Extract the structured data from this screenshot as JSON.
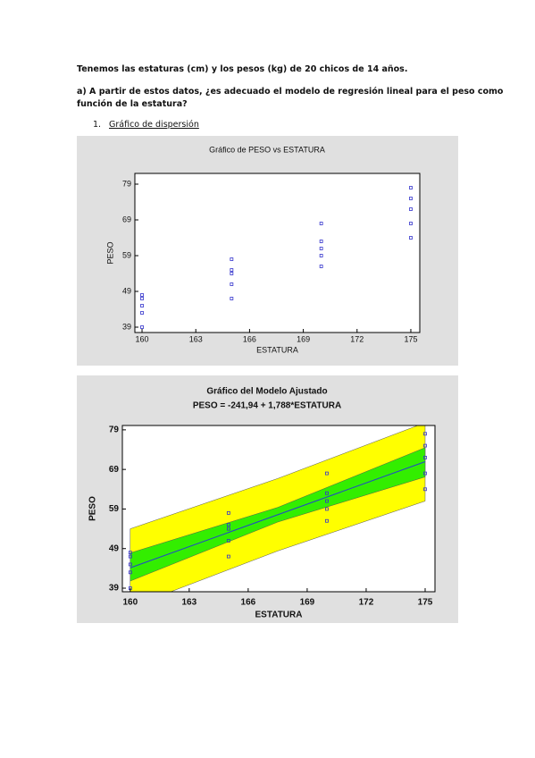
{
  "document": {
    "intro": "Tenemos las estaturas (cm) y los pesos (kg) de 20 chicos de 14 años.",
    "question_lines": [
      "a) A partir de estos datos, ¿es adecuado el modelo de regresión lineal para el peso como",
      "función de la estatura?"
    ],
    "list_number": "1.",
    "list_item": "Gráfico de dispersión"
  },
  "chart_data": [
    {
      "type": "scatter",
      "title": "Gráfico de PESO vs ESTATURA",
      "x_label": "ESTATURA",
      "y_label": "PESO",
      "x": [
        160,
        160,
        160,
        160,
        160,
        165,
        165,
        165,
        165,
        165,
        170,
        170,
        170,
        170,
        170,
        175,
        175,
        175,
        175,
        175
      ],
      "values": [
        48,
        47,
        45,
        43,
        39,
        58,
        55,
        54,
        51,
        47,
        68,
        63,
        61,
        59,
        56,
        78,
        75,
        72,
        68,
        64
      ],
      "color": "#3333cc",
      "xlim": [
        159.6,
        175.5
      ],
      "ylim": [
        37.5,
        82
      ],
      "xticks": [
        160,
        163,
        166,
        169,
        172,
        175
      ],
      "yticks": [
        39,
        49,
        59,
        69,
        79
      ]
    },
    {
      "type": "scatter",
      "title": "Gráfico del Modelo Ajustado",
      "subtitle": "PESO = -241,94 + 1,788*ESTATURA",
      "x_label": "ESTATURA",
      "y_label": "PESO",
      "x": [
        160,
        160,
        160,
        160,
        160,
        165,
        165,
        165,
        165,
        165,
        170,
        170,
        170,
        170,
        170,
        175,
        175,
        175,
        175,
        175
      ],
      "values": [
        48,
        47,
        45,
        43,
        39,
        58,
        55,
        54,
        51,
        47,
        68,
        63,
        61,
        59,
        56,
        78,
        75,
        72,
        68,
        64
      ],
      "color": "#3333cc",
      "fit": {
        "x": [
          160,
          175
        ],
        "values": [
          44.14,
          70.96
        ],
        "color": "#2244cc"
      },
      "prediction_band": {
        "x": [
          160,
          167.5,
          175
        ],
        "lower": [
          34.2,
          48.4,
          61.0
        ],
        "upper": [
          54.0,
          66.7,
          80.8
        ],
        "color": "#ffff00"
      },
      "confidence_band": {
        "x": [
          160,
          167.5,
          175
        ],
        "lower": [
          40.8,
          55.7,
          67.1
        ],
        "upper": [
          47.9,
          59.4,
          74.5
        ],
        "color": "#33ee00"
      },
      "xlim": [
        159.6,
        175.5
      ],
      "ylim": [
        38.1,
        80.1
      ],
      "xticks": [
        160,
        163,
        166,
        169,
        172,
        175
      ],
      "yticks": [
        39,
        49,
        59,
        69,
        79
      ]
    }
  ]
}
